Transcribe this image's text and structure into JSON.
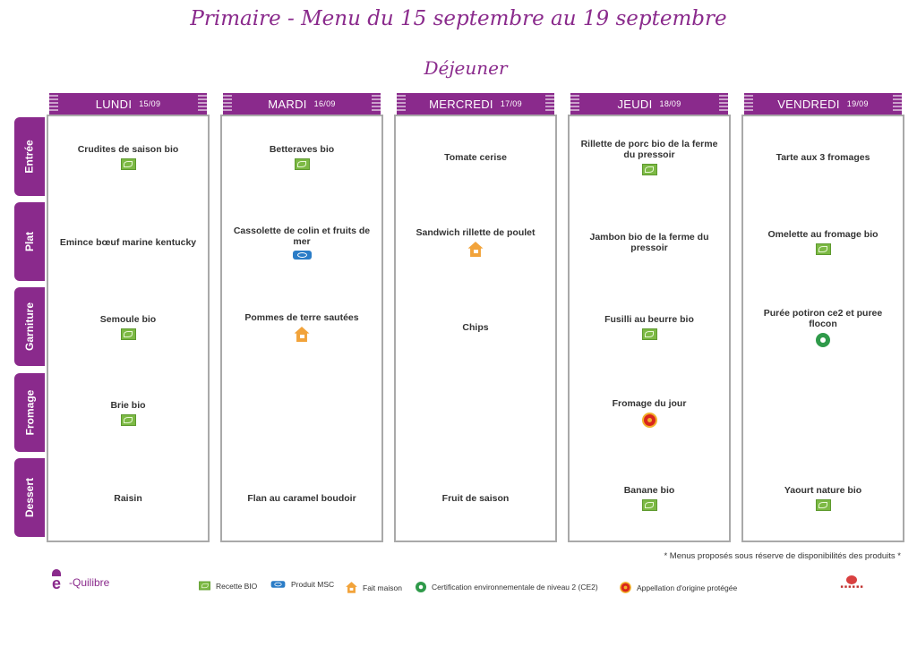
{
  "title": "Primaire - Menu du 15 septembre au 19 septembre",
  "meal": "Déjeuner",
  "days": [
    {
      "name": "LUNDI",
      "date": "15/09"
    },
    {
      "name": "MARDI",
      "date": "16/09"
    },
    {
      "name": "MERCREDI",
      "date": "17/09"
    },
    {
      "name": "JEUDI",
      "date": "18/09"
    },
    {
      "name": "VENDREDI",
      "date": "19/09"
    }
  ],
  "courses": [
    "Entrée",
    "Plat",
    "Garniture",
    "Fromage",
    "Dessert"
  ],
  "menu": [
    [
      {
        "dish": "Crudites de saison bio",
        "icon": "bio-leaf-icon"
      },
      {
        "dish": "Emince bœuf marine kentucky",
        "icon": ""
      },
      {
        "dish": "Semoule bio",
        "icon": "bio-leaf-icon"
      },
      {
        "dish": "Brie bio",
        "icon": "bio-leaf-icon"
      },
      {
        "dish": "Raisin",
        "icon": ""
      }
    ],
    [
      {
        "dish": "Betteraves bio",
        "icon": "bio-leaf-icon"
      },
      {
        "dish": "Cassolette de colin et fruits de mer",
        "icon": "msc-fish-icon"
      },
      {
        "dish": "Pommes de terre sautées",
        "icon": "homemade-house-icon"
      },
      {
        "dish": "",
        "icon": ""
      },
      {
        "dish": "Flan au caramel boudoir",
        "icon": ""
      }
    ],
    [
      {
        "dish": "Tomate cerise",
        "icon": ""
      },
      {
        "dish": "Sandwich rillette de poulet",
        "icon": "homemade-house-icon"
      },
      {
        "dish": "Chips",
        "icon": ""
      },
      {
        "dish": "",
        "icon": ""
      },
      {
        "dish": "Fruit de saison",
        "icon": ""
      }
    ],
    [
      {
        "dish": "Rillette de porc bio de la ferme du pressoir",
        "icon": "bio-leaf-icon"
      },
      {
        "dish": "Jambon bio de la ferme du pressoir",
        "icon": ""
      },
      {
        "dish": "Fusilli au beurre bio",
        "icon": "bio-leaf-icon"
      },
      {
        "dish": "Fromage du jour",
        "icon": "aop-seal-icon"
      },
      {
        "dish": "Banane bio",
        "icon": "bio-leaf-icon"
      }
    ],
    [
      {
        "dish": "Tarte aux 3 fromages",
        "icon": ""
      },
      {
        "dish": "Omelette au fromage bio",
        "icon": "bio-leaf-icon"
      },
      {
        "dish": "Purée potiron ce2 et puree flocon",
        "icon": "ce2-globe-icon"
      },
      {
        "dish": "",
        "icon": ""
      },
      {
        "dish": "Yaourt nature bio",
        "icon": "bio-leaf-icon"
      }
    ]
  ],
  "note": "* Menus proposés sous réserve de disponibilités des produits *",
  "logo": "-Quilibre",
  "legend": [
    {
      "label": "Recette BIO",
      "icon": "bio-leaf-icon"
    },
    {
      "label": "Produit MSC",
      "icon": "msc-fish-icon"
    },
    {
      "label": "Fait maison",
      "icon": "homemade-house-icon"
    },
    {
      "label": "Certification environnementale de niveau 2 (CE2)",
      "icon": "ce2-globe-icon"
    },
    {
      "label": "Appellation d'origine protégée",
      "icon": "aop-seal-icon"
    }
  ],
  "colors": {
    "accent": "#8a2a8c",
    "bio": "#7cb944",
    "msc": "#2a7cc7",
    "homemade": "#f2a33a",
    "ce2": "#2f9a4a",
    "aop": "#d9261c"
  }
}
